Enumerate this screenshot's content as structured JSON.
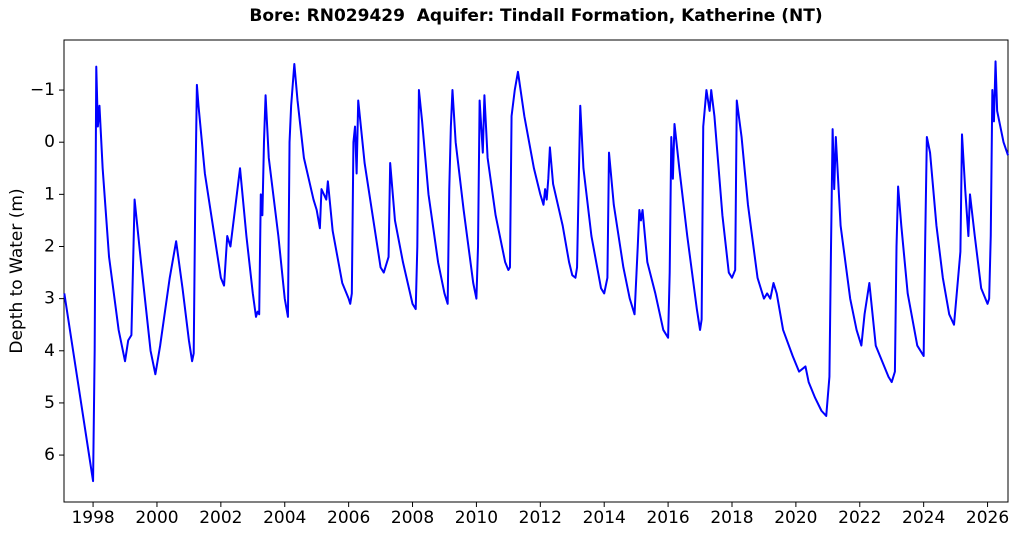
{
  "chart_data": {
    "type": "line",
    "title": "Bore: RN029429  Aquifer: Tindall Formation, Katherine (NT)",
    "y_label": "Depth to Water (m)",
    "color": "#0000ff",
    "grid": false,
    "y_inverted": true,
    "xlim": [
      1997.09,
      2026.64
    ],
    "ylim": [
      -1.96,
      6.9
    ],
    "xticks": [
      1998,
      2000,
      2002,
      2004,
      2006,
      2008,
      2010,
      2012,
      2014,
      2016,
      2018,
      2020,
      2022,
      2024,
      2026
    ],
    "yticks": [
      {
        "value": -1,
        "label": "−1"
      },
      0,
      1,
      2,
      3,
      4,
      5,
      6
    ],
    "x": [
      1997.1,
      1997.2,
      1997.5,
      1997.8,
      1998.0,
      1998.05,
      1998.1,
      1998.15,
      1998.2,
      1998.3,
      1998.5,
      1998.8,
      1999.0,
      1999.1,
      1999.2,
      1999.3,
      1999.5,
      1999.8,
      1999.95,
      2000.1,
      2000.4,
      2000.6,
      2000.8,
      2001.0,
      2001.1,
      2001.15,
      2001.2,
      2001.25,
      2001.3,
      2001.5,
      2001.8,
      2002.0,
      2002.1,
      2002.2,
      2002.3,
      2002.5,
      2002.6,
      2002.8,
      2003.0,
      2003.1,
      2003.15,
      2003.2,
      2003.25,
      2003.3,
      2003.35,
      2003.4,
      2003.5,
      2003.8,
      2004.0,
      2004.1,
      2004.15,
      2004.2,
      2004.25,
      2004.3,
      2004.4,
      2004.6,
      2004.9,
      2005.0,
      2005.1,
      2005.15,
      2005.3,
      2005.35,
      2005.5,
      2005.8,
      2006.0,
      2006.05,
      2006.1,
      2006.15,
      2006.2,
      2006.25,
      2006.3,
      2006.5,
      2006.8,
      2007.0,
      2007.1,
      2007.2,
      2007.25,
      2007.3,
      2007.45,
      2007.7,
      2008.0,
      2008.1,
      2008.15,
      2008.2,
      2008.3,
      2008.5,
      2008.8,
      2009.0,
      2009.1,
      2009.15,
      2009.2,
      2009.25,
      2009.35,
      2009.6,
      2009.9,
      2010.0,
      2010.05,
      2010.1,
      2010.2,
      2010.25,
      2010.35,
      2010.6,
      2010.9,
      2011.0,
      2011.05,
      2011.1,
      2011.2,
      2011.3,
      2011.5,
      2011.8,
      2012.0,
      2012.1,
      2012.15,
      2012.2,
      2012.25,
      2012.3,
      2012.4,
      2012.7,
      2012.9,
      2013.0,
      2013.1,
      2013.15,
      2013.25,
      2013.35,
      2013.6,
      2013.9,
      2014.0,
      2014.1,
      2014.15,
      2014.3,
      2014.6,
      2014.8,
      2014.95,
      2015.05,
      2015.1,
      2015.15,
      2015.2,
      2015.35,
      2015.6,
      2015.85,
      2016.0,
      2016.05,
      2016.1,
      2016.15,
      2016.2,
      2016.35,
      2016.6,
      2016.9,
      2017.0,
      2017.05,
      2017.1,
      2017.2,
      2017.3,
      2017.35,
      2017.45,
      2017.7,
      2017.9,
      2018.0,
      2018.1,
      2018.15,
      2018.3,
      2018.5,
      2018.8,
      2019.0,
      2019.1,
      2019.2,
      2019.3,
      2019.4,
      2019.6,
      2019.9,
      2020.1,
      2020.3,
      2020.4,
      2020.6,
      2020.8,
      2020.95,
      2021.05,
      2021.1,
      2021.15,
      2021.2,
      2021.25,
      2021.4,
      2021.7,
      2021.9,
      2022.05,
      2022.15,
      2022.3,
      2022.5,
      2022.7,
      2022.9,
      2023.0,
      2023.1,
      2023.15,
      2023.2,
      2023.3,
      2023.5,
      2023.8,
      2024.0,
      2024.05,
      2024.1,
      2024.2,
      2024.4,
      2024.6,
      2024.8,
      2024.95,
      2025.05,
      2025.15,
      2025.2,
      2025.3,
      2025.4,
      2025.45,
      2025.6,
      2025.8,
      2026.0,
      2026.05,
      2026.1,
      2026.15,
      2026.2,
      2026.25,
      2026.3,
      2026.5,
      2026.64
    ],
    "values": [
      2.9,
      3.3,
      4.5,
      5.7,
      6.5,
      4.0,
      -1.45,
      -0.3,
      -0.7,
      0.5,
      2.2,
      3.6,
      4.2,
      3.8,
      3.7,
      1.1,
      2.3,
      4.0,
      4.45,
      3.9,
      2.6,
      1.9,
      2.8,
      3.8,
      4.2,
      4.05,
      1.0,
      -1.1,
      -0.7,
      0.6,
      1.8,
      2.6,
      2.75,
      1.8,
      2.0,
      1.0,
      0.5,
      1.8,
      2.9,
      3.35,
      3.25,
      3.3,
      1.0,
      1.4,
      0.0,
      -0.9,
      0.3,
      1.8,
      3.0,
      3.35,
      0.0,
      -0.7,
      -1.1,
      -1.5,
      -0.8,
      0.3,
      1.1,
      1.3,
      1.65,
      0.9,
      1.1,
      0.75,
      1.7,
      2.7,
      3.0,
      3.1,
      2.9,
      0.0,
      -0.3,
      0.6,
      -0.8,
      0.4,
      1.6,
      2.4,
      2.5,
      2.3,
      2.2,
      0.4,
      1.5,
      2.3,
      3.1,
      3.2,
      2.0,
      -1.0,
      -0.4,
      1.0,
      2.3,
      2.9,
      3.1,
      0.9,
      -0.3,
      -1.0,
      0.0,
      1.3,
      2.7,
      3.0,
      2.0,
      -0.8,
      0.2,
      -0.9,
      0.3,
      1.4,
      2.3,
      2.45,
      2.4,
      -0.5,
      -1.0,
      -1.35,
      -0.5,
      0.5,
      1.0,
      1.2,
      0.9,
      1.1,
      0.7,
      0.1,
      0.8,
      1.6,
      2.3,
      2.55,
      2.6,
      2.4,
      -0.7,
      0.5,
      1.8,
      2.8,
      2.9,
      2.6,
      0.2,
      1.2,
      2.4,
      3.0,
      3.3,
      2.0,
      1.3,
      1.5,
      1.3,
      2.3,
      2.9,
      3.6,
      3.75,
      2.5,
      -0.1,
      0.7,
      -0.35,
      0.5,
      1.8,
      3.2,
      3.6,
      3.4,
      -0.3,
      -1.0,
      -0.6,
      -1.0,
      -0.5,
      1.4,
      2.5,
      2.6,
      2.45,
      -0.8,
      -0.1,
      1.2,
      2.6,
      3.0,
      2.9,
      3.0,
      2.7,
      2.9,
      3.6,
      4.1,
      4.4,
      4.3,
      4.6,
      4.9,
      5.15,
      5.25,
      4.5,
      2.0,
      -0.25,
      0.9,
      -0.1,
      1.6,
      3.0,
      3.6,
      3.9,
      3.3,
      2.7,
      3.9,
      4.2,
      4.5,
      4.6,
      4.4,
      2.0,
      0.85,
      1.6,
      2.9,
      3.9,
      4.1,
      1.8,
      -0.1,
      0.2,
      1.6,
      2.6,
      3.3,
      3.5,
      2.8,
      2.1,
      -0.15,
      0.9,
      1.8,
      1.0,
      1.8,
      2.8,
      3.1,
      3.0,
      1.8,
      -1.0,
      -0.4,
      -1.55,
      -0.6,
      0.0,
      0.25
    ]
  }
}
